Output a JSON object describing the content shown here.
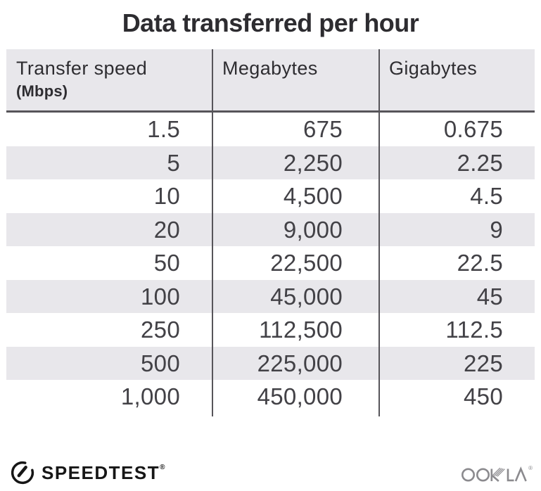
{
  "title": "Data transferred per hour",
  "chart_data": {
    "type": "table",
    "title": "Data transferred per hour",
    "columns": [
      "Transfer speed (Mbps)",
      "Megabytes",
      "Gigabytes"
    ],
    "rows": [
      [
        1.5,
        675,
        0.675
      ],
      [
        5,
        2250,
        2.25
      ],
      [
        10,
        4500,
        4.5
      ],
      [
        20,
        9000,
        9
      ],
      [
        50,
        22500,
        22.5
      ],
      [
        100,
        45000,
        45
      ],
      [
        250,
        112500,
        112.5
      ],
      [
        500,
        225000,
        225
      ],
      [
        1000,
        450000,
        450
      ]
    ]
  },
  "table": {
    "header": {
      "col1_line1": "Transfer speed",
      "col1_line2": "(Mbps)",
      "col2": "Megabytes",
      "col3": "Gigabytes"
    },
    "rows": [
      {
        "speed": "1.5",
        "megabytes": "675",
        "gigabytes": "0.675"
      },
      {
        "speed": "5",
        "megabytes": "2,250",
        "gigabytes": "2.25"
      },
      {
        "speed": "10",
        "megabytes": "4,500",
        "gigabytes": "4.5"
      },
      {
        "speed": "20",
        "megabytes": "9,000",
        "gigabytes": "9"
      },
      {
        "speed": "50",
        "megabytes": "22,500",
        "gigabytes": "22.5"
      },
      {
        "speed": "100",
        "megabytes": "45,000",
        "gigabytes": "45"
      },
      {
        "speed": "250",
        "megabytes": "112,500",
        "gigabytes": "112.5"
      },
      {
        "speed": "500",
        "megabytes": "225,000",
        "gigabytes": "225"
      },
      {
        "speed": "1,000",
        "megabytes": "450,000",
        "gigabytes": "450"
      }
    ]
  },
  "footer": {
    "speedtest_label": "SPEEDTEST",
    "speedtest_mark": "®",
    "ookla_label": "OOKLA",
    "ookla_mark": "®",
    "icons": {
      "speedtest": "speedometer-gauge-icon",
      "ookla": "ookla-wordmark"
    }
  },
  "colors": {
    "header_bg": "#e8e7eb",
    "stripe_bg": "#e8e7eb",
    "divider": "#57555a",
    "title_text": "#2d2c30",
    "body_text": "#424146",
    "speedtest_black": "#161616",
    "ookla_gray": "#8b8a8e"
  }
}
